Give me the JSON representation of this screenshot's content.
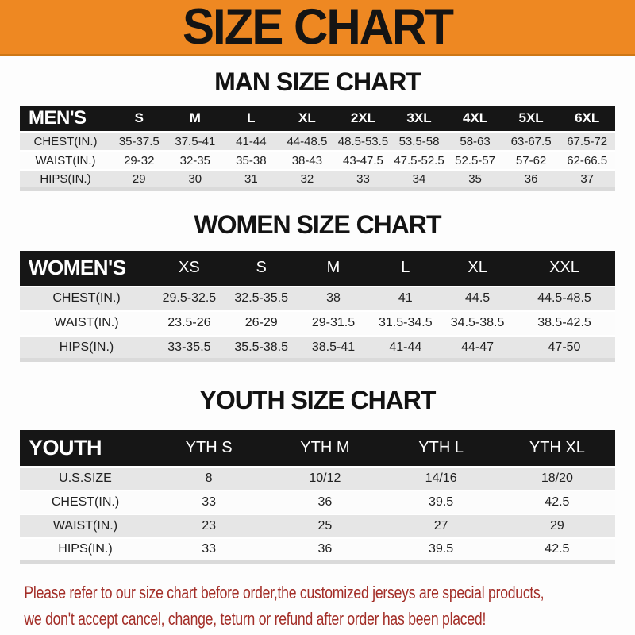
{
  "banner": {
    "title": "SIZE CHART"
  },
  "sections": [
    {
      "id": "man",
      "heading": "MAN SIZE CHART",
      "table": {
        "header_label": "MEN'S",
        "columns": [
          "S",
          "M",
          "L",
          "XL",
          "2XL",
          "3XL",
          "4XL",
          "5XL",
          "6XL"
        ],
        "rows": [
          {
            "label": "CHEST(IN.)",
            "values": [
              "35-37.5",
              "37.5-41",
              "41-44",
              "44-48.5",
              "48.5-53.5",
              "53.5-58",
              "58-63",
              "63-67.5",
              "67.5-72"
            ]
          },
          {
            "label": "WAIST(IN.)",
            "values": [
              "29-32",
              "32-35",
              "35-38",
              "38-43",
              "43-47.5",
              "47.5-52.5",
              "52.5-57",
              "57-62",
              "62-66.5"
            ]
          },
          {
            "label": "HIPS(IN.)",
            "values": [
              "29",
              "30",
              "31",
              "32",
              "33",
              "34",
              "35",
              "36",
              "37"
            ]
          }
        ]
      }
    },
    {
      "id": "women",
      "heading": "WOMEN SIZE CHART",
      "table": {
        "header_label": "WOMEN'S",
        "columns": [
          "XS",
          "S",
          "M",
          "L",
          "XL",
          "XXL"
        ],
        "rows": [
          {
            "label": "CHEST(IN.)",
            "values": [
              "29.5-32.5",
              "32.5-35.5",
              "38",
              "41",
              "44.5",
              "44.5-48.5"
            ]
          },
          {
            "label": "WAIST(IN.)",
            "values": [
              "23.5-26",
              "26-29",
              "29-31.5",
              "31.5-34.5",
              "34.5-38.5",
              "38.5-42.5"
            ]
          },
          {
            "label": "HIPS(IN.)",
            "values": [
              "33-35.5",
              "35.5-38.5",
              "38.5-41",
              "41-44",
              "44-47",
              "47-50"
            ]
          }
        ]
      }
    },
    {
      "id": "youth",
      "heading": "YOUTH SIZE CHART",
      "table": {
        "header_label": "YOUTH",
        "columns": [
          "YTH S",
          "YTH M",
          "YTH L",
          "YTH XL"
        ],
        "rows": [
          {
            "label": "U.S.SIZE",
            "values": [
              "8",
              "10/12",
              "14/16",
              "18/20"
            ]
          },
          {
            "label": "CHEST(IN.)",
            "values": [
              "33",
              "36",
              "39.5",
              "42.5"
            ]
          },
          {
            "label": "WAIST(IN.)",
            "values": [
              "23",
              "25",
              "27",
              "29"
            ]
          },
          {
            "label": "HIPS(IN.)",
            "values": [
              "33",
              "36",
              "39.5",
              "42.5"
            ]
          }
        ]
      }
    }
  ],
  "footer": {
    "lines": [
      "Please refer to our size chart before order,the customized jerseys are special products,",
      "we don't accept cancel, change, teturn or refund after order has been placed!"
    ]
  },
  "colors": {
    "banner_bg": "#ee8822",
    "header_bar": "#161616",
    "row_stripe": "#e6e6e6",
    "footer_text": "#a32e28"
  }
}
